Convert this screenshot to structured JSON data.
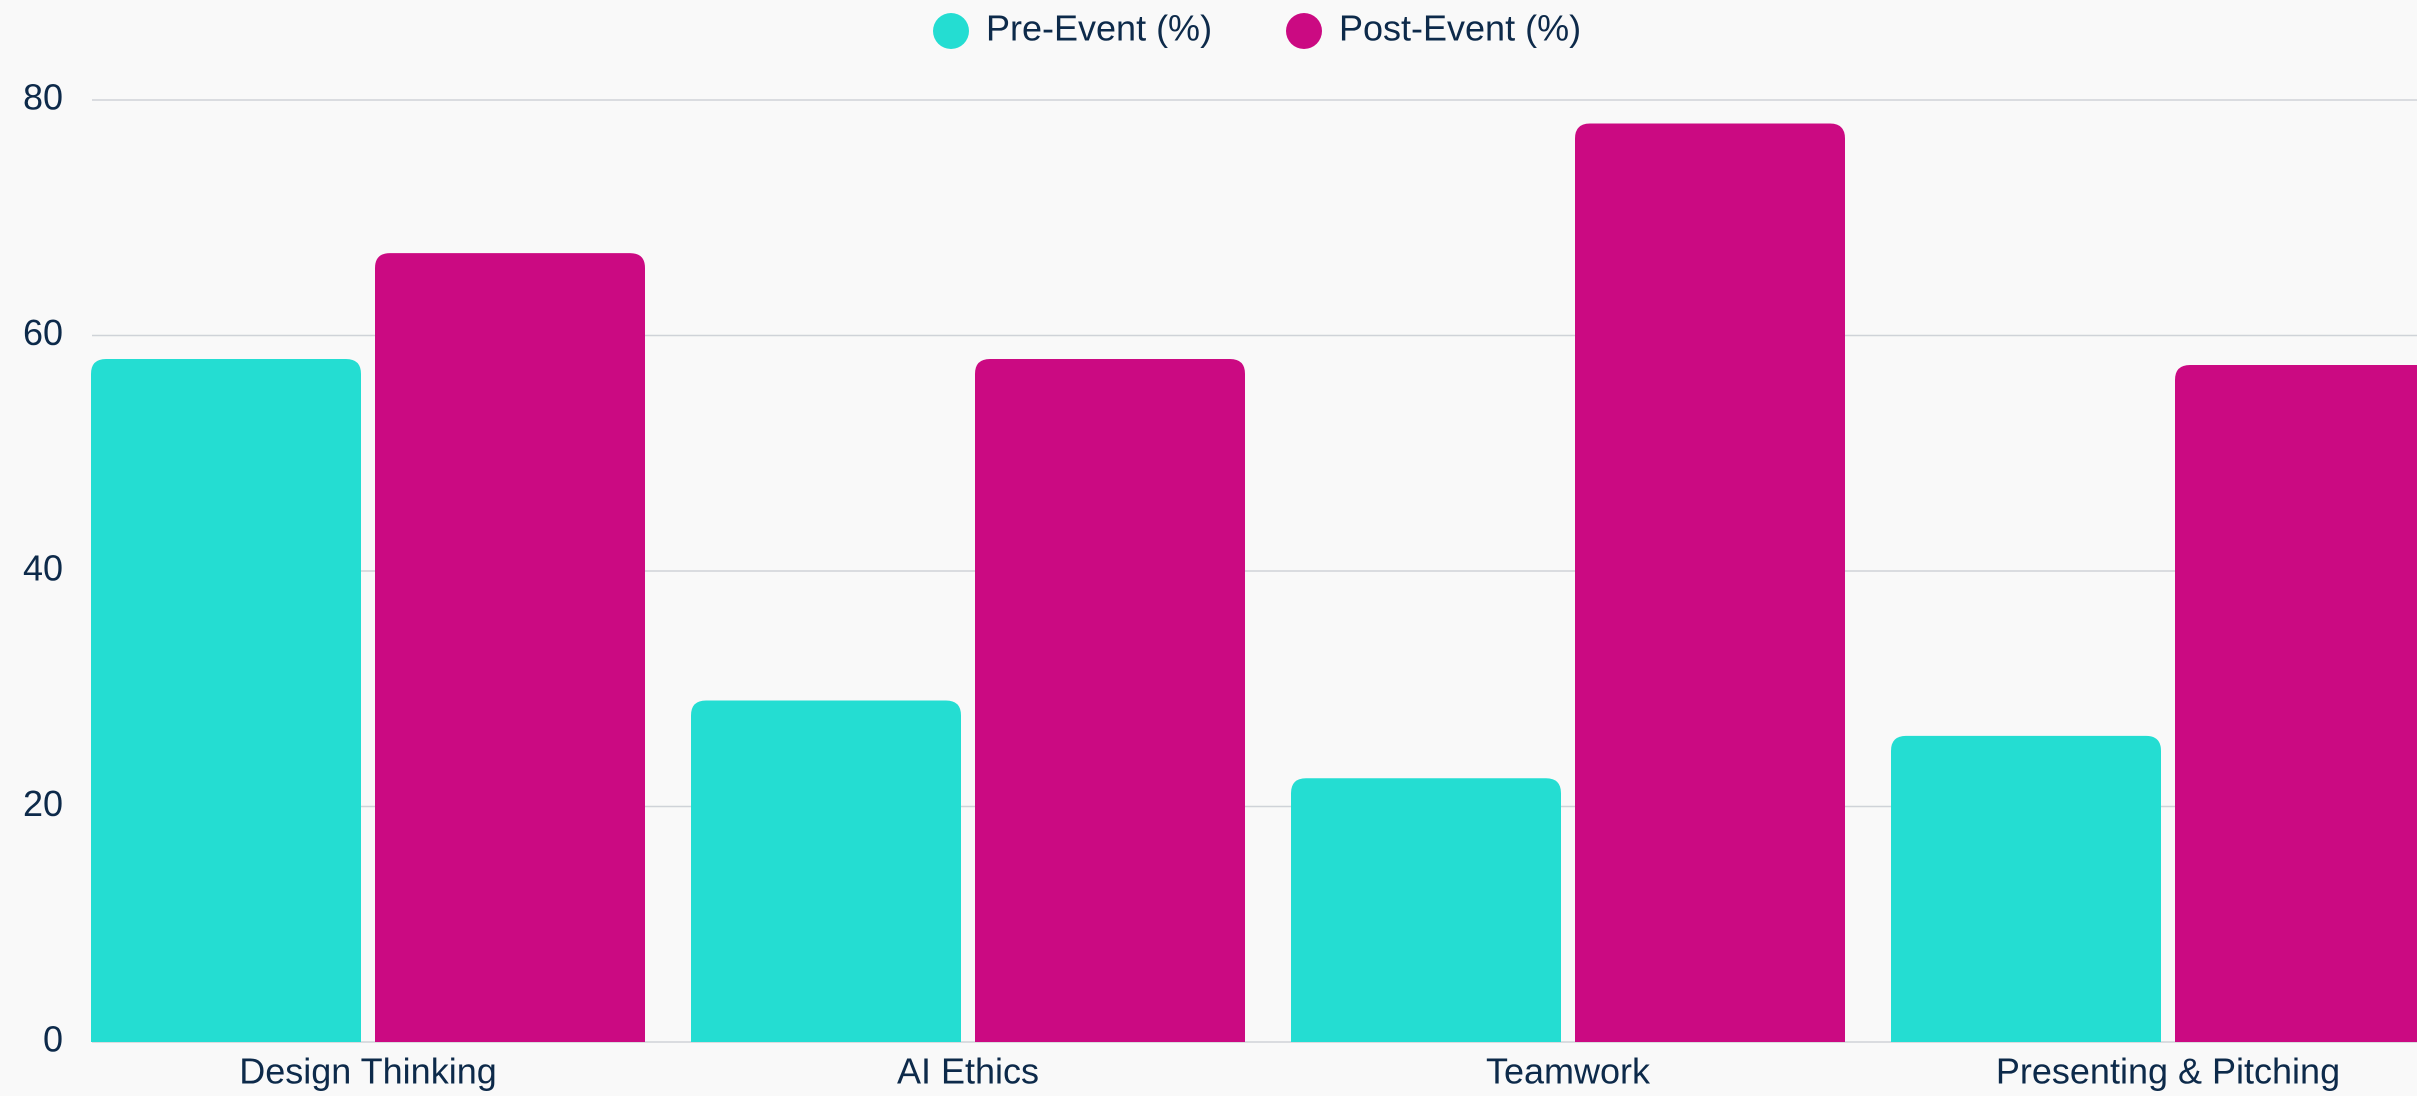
{
  "chart_data": {
    "type": "bar",
    "categories": [
      "Design Thinking",
      "AI Ethics",
      "Teamwork",
      "Presenting & Pitching"
    ],
    "series": [
      {
        "name": "Pre-Event (%)",
        "color": "#24ddd2",
        "values": [
          58,
          29,
          22.4,
          26
        ]
      },
      {
        "name": "Post-Event (%)",
        "color": "#cb0a82",
        "values": [
          67,
          58,
          78,
          57.5
        ]
      }
    ],
    "ylim": [
      0,
      80
    ],
    "yticks": [
      0,
      20,
      40,
      60,
      80
    ],
    "grid": true,
    "legend": "top"
  }
}
